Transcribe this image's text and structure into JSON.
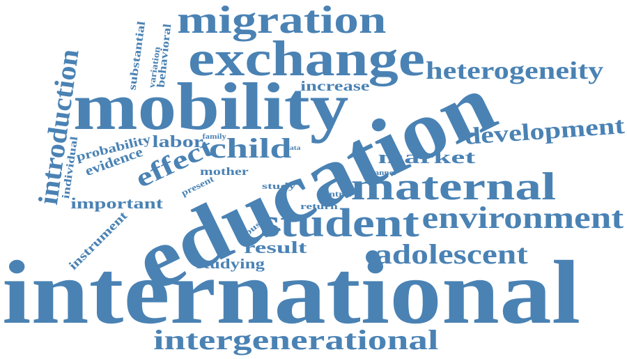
{
  "colors": {
    "word": "#4a82b4",
    "background": "#ffffff"
  },
  "words": [
    "international",
    "education",
    "mobility",
    "exchange",
    "migration",
    "student",
    "maternal",
    "intergenerational",
    "environment",
    "adolescent",
    "heterogeneity",
    "development",
    "introduction",
    "child",
    "effect",
    "labor",
    "market",
    "increase",
    "evidence",
    "probability",
    "important",
    "result",
    "studying",
    "mother",
    "instrument",
    "substantial",
    "variation",
    "behavioral",
    "individual",
    "family",
    "data",
    "channel",
    "present",
    "study",
    "control",
    "return",
    "robust"
  ]
}
